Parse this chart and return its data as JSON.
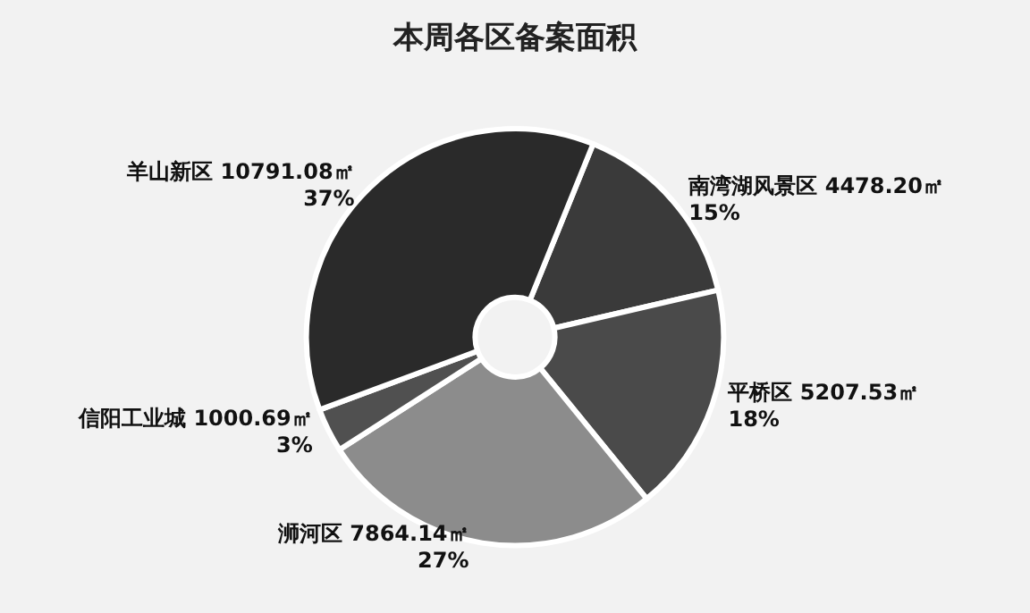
{
  "chart_data": {
    "type": "donut",
    "title": "本周各区备案面积",
    "categories": [
      "南湾湖风景区",
      "平桥区",
      "浉河区",
      "信阳工业城",
      "羊山新区"
    ],
    "values": [
      4478.2,
      5207.53,
      7864.14,
      1000.69,
      10791.08
    ],
    "value_labels": [
      "4478.20㎡\n15%",
      "5207.53㎡\n18%",
      "7864.14㎡\n27%",
      "1000.69㎡\n3%",
      "10791.08㎡\n37%"
    ],
    "colors": [
      "#3a3a3a",
      "#4a4a4a",
      "#8c8c8c",
      "#505050",
      "#2a2a2a"
    ],
    "legend": false
  }
}
